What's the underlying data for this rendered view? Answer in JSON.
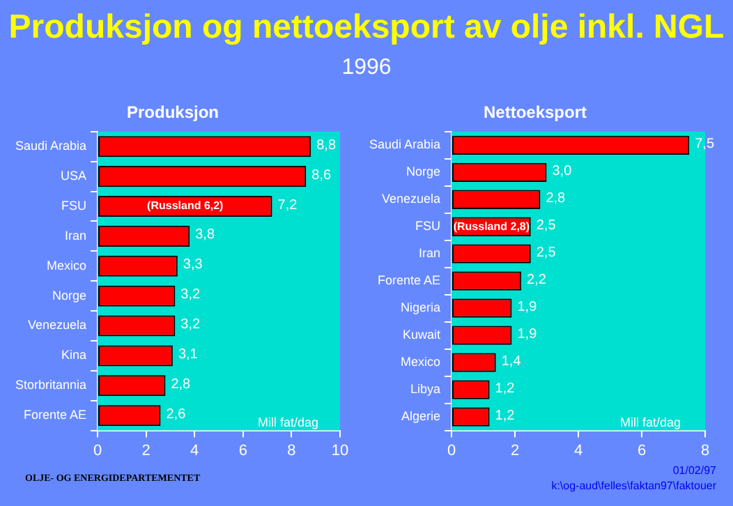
{
  "chart_data": [
    {
      "type": "bar",
      "orientation": "horizontal",
      "title": "Produksjon",
      "categories": [
        "Saudi Arabia",
        "USA",
        "FSU",
        "Iran",
        "Mexico",
        "Norge",
        "Venezuela",
        "Kina",
        "Storbritannia",
        "Forente AE"
      ],
      "values": [
        8.8,
        8.6,
        7.2,
        3.8,
        3.3,
        3.2,
        3.2,
        3.1,
        2.8,
        2.6
      ],
      "color": "#ff0000",
      "value_labels": [
        "8,8",
        "8,6",
        "7,2",
        "3,8",
        "3,3",
        "3,2",
        "3,2",
        "3,1",
        "2,8",
        "2,6"
      ],
      "xlim": [
        0,
        10
      ],
      "xticks": [
        0,
        2,
        4,
        6,
        8,
        10
      ],
      "grid": false,
      "legend": false,
      "annotations": [
        "Produksjon og nettoeksport av olje inkl. NGL",
        "1996",
        {
          "text": "(Russland 6,2)",
          "y": "FSU"
        },
        "Mill fat/dag",
        "OLJE- OG ENERGIDEPARTEMENTET"
      ]
    },
    {
      "type": "bar",
      "orientation": "horizontal",
      "title": "Nettoeksport",
      "categories": [
        "Saudi Arabia",
        "Norge",
        "Venezuela",
        "FSU",
        "Iran",
        "Forente AE",
        "Nigeria",
        "Kuwait",
        "Mexico",
        "Libya",
        "Algerie"
      ],
      "values": [
        7.5,
        3.0,
        2.8,
        2.5,
        2.5,
        2.2,
        1.9,
        1.9,
        1.4,
        1.2,
        1.2
      ],
      "color": "#ff0000",
      "value_labels": [
        "7,5",
        "3,0",
        "2,8",
        "2,5",
        "2,5",
        "2,2",
        "1,9",
        "1,9",
        "1,4",
        "1,2",
        "1,2"
      ],
      "xlim": [
        0,
        8
      ],
      "xticks": [
        0,
        2,
        4,
        6,
        8
      ],
      "grid": false,
      "legend": false,
      "annotations": [
        {
          "text": "(Russland 2,8)",
          "y": "FSU"
        },
        "Mill fat/dag",
        "01/02/97",
        "k:\\og-aud\\felles\\faktan97\\faktouer"
      ]
    }
  ]
}
